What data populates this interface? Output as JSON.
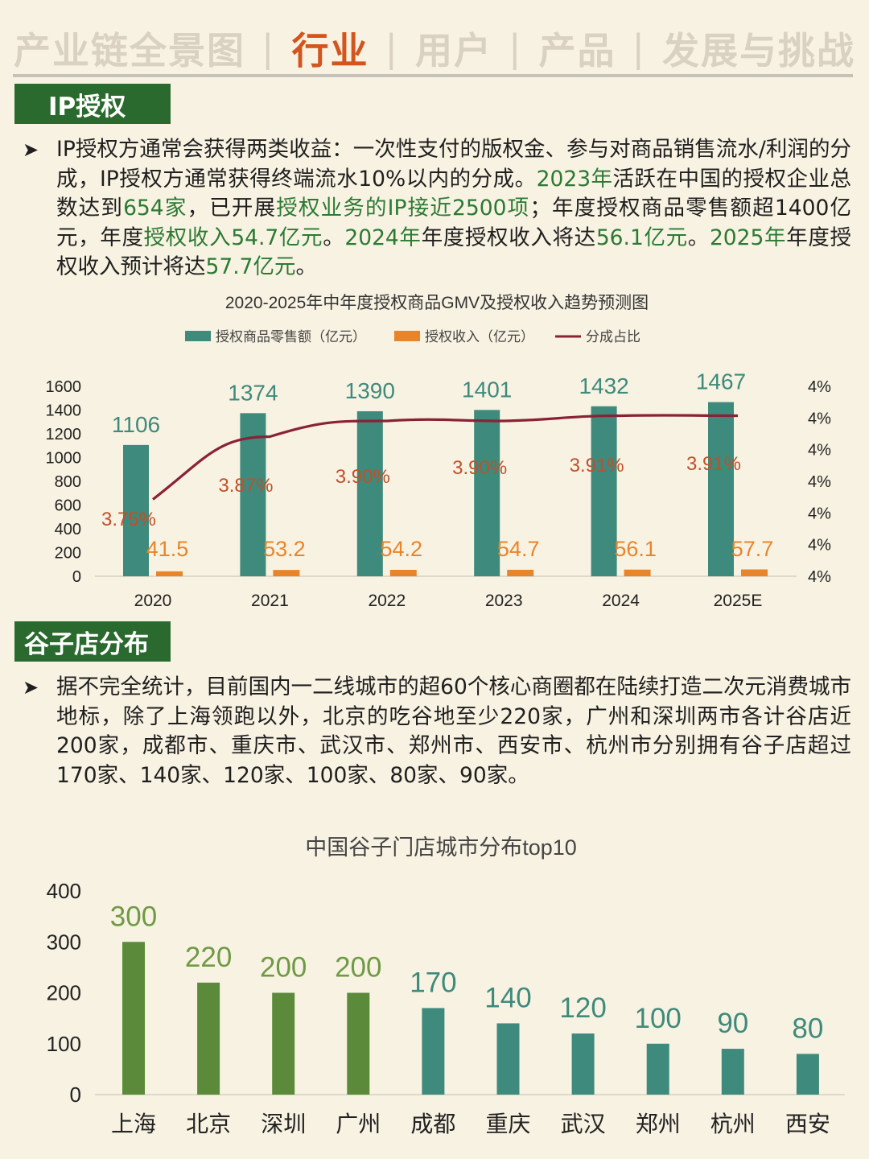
{
  "nav": {
    "items": [
      "产业链全景图",
      "行业",
      "用户",
      "产品",
      "发展与挑战"
    ],
    "active_index": 1,
    "separator": "|"
  },
  "section1": {
    "title": "IP授权",
    "paragraph": [
      {
        "t": "IP授权方通常会获得两类收益：一次性支付的版权金、参与对商品销售流水/利润的分成，IP授权方通常获得终端流水10%以内的分成。",
        "hl": false
      },
      {
        "t": "2023年",
        "hl": true
      },
      {
        "t": "活跃在中国的授权企业总数达到",
        "hl": false
      },
      {
        "t": "654家",
        "hl": true
      },
      {
        "t": "，已开展",
        "hl": false
      },
      {
        "t": "授权业务的IP接近2500项",
        "hl": true
      },
      {
        "t": "；年度授权商品零售额超1400亿元，年度",
        "hl": false
      },
      {
        "t": "授权收入54.7亿元",
        "hl": true
      },
      {
        "t": "。",
        "hl": false
      },
      {
        "t": "2024年",
        "hl": true
      },
      {
        "t": "年度授权收入将达",
        "hl": false
      },
      {
        "t": "56.1亿元",
        "hl": true
      },
      {
        "t": "。",
        "hl": false
      },
      {
        "t": "2025年",
        "hl": true
      },
      {
        "t": "年度授权收入预计将达",
        "hl": false
      },
      {
        "t": "57.7亿元",
        "hl": true
      },
      {
        "t": "。",
        "hl": false
      }
    ]
  },
  "section2": {
    "title": "谷子店分布",
    "paragraph": [
      {
        "t": "据不完全统计，目前国内一二线城市的超60个核心商圈都在陆续打造二次元消费城市地标，除了上海领跑以外，北京的吃谷地至少220家，广州和深圳两市各计谷店近200家，成都市、重庆市、武汉市、郑州市、西安市、杭州市分别拥有谷子店超过170家、140家、120家、100家、80家、90家。",
        "hl": false
      }
    ]
  },
  "bullet": "➤",
  "chart_data": [
    {
      "type": "bar",
      "title": "2020-2025年中年度授权商品GMV及授权收入趋势预测图",
      "categories": [
        "2020",
        "2021",
        "2022",
        "2023",
        "2024",
        "2025E"
      ],
      "series": [
        {
          "name": "授权商品零售额（亿元）",
          "kind": "bar",
          "color": "#3e8a7c",
          "values": [
            1106,
            1374,
            1390,
            1401,
            1432,
            1467
          ],
          "labels": [
            "1106",
            "1374",
            "1390",
            "1401",
            "1432",
            "1467"
          ]
        },
        {
          "name": "授权收入（亿元）",
          "kind": "bar",
          "color": "#e8852a",
          "values": [
            41.5,
            53.2,
            54.2,
            54.7,
            56.1,
            57.7
          ],
          "labels": [
            "41.5",
            "53.2",
            "54.2",
            "54.7",
            "56.1",
            "57.7"
          ]
        },
        {
          "name": "分成占比",
          "kind": "line",
          "color": "#8a2236",
          "values": [
            3.75,
            3.87,
            3.9,
            3.9,
            3.91,
            3.91
          ],
          "labels": [
            "3.75%",
            "3.87%",
            "3.90%",
            "3.90%",
            "3.91%",
            "3.91%"
          ]
        }
      ],
      "y_left_ticks": [
        "0",
        "200",
        "400",
        "600",
        "800",
        "1000",
        "1200",
        "1400",
        "1600"
      ],
      "ylim": [
        0,
        1600
      ],
      "y_right_ticks": [
        "4%",
        "4%",
        "4%",
        "4%",
        "4%",
        "4%",
        "4%"
      ],
      "y_right_range": [
        3.7,
        3.92
      ],
      "legend_position": "top"
    },
    {
      "type": "bar",
      "title": "中国谷子门店城市分布top10",
      "categories": [
        "上海",
        "北京",
        "深圳",
        "广州",
        "成都",
        "重庆",
        "武汉",
        "郑州",
        "杭州",
        "西安"
      ],
      "values": [
        300,
        220,
        200,
        200,
        170,
        140,
        120,
        100,
        90,
        80
      ],
      "colors": [
        "#5b8b3a",
        "#5b8b3a",
        "#5b8b3a",
        "#5b8b3a",
        "#3e8a7c",
        "#3e8a7c",
        "#3e8a7c",
        "#3e8a7c",
        "#3e8a7c",
        "#3e8a7c"
      ],
      "label_colors": [
        "#6f9a45",
        "#6f9a45",
        "#6f9a45",
        "#6f9a45",
        "#3e8a7c",
        "#3e8a7c",
        "#3e8a7c",
        "#3e8a7c",
        "#3e8a7c",
        "#3e8a7c"
      ],
      "y_ticks": [
        "0",
        "100",
        "200",
        "300",
        "400"
      ],
      "ylim": [
        0,
        400
      ]
    }
  ]
}
